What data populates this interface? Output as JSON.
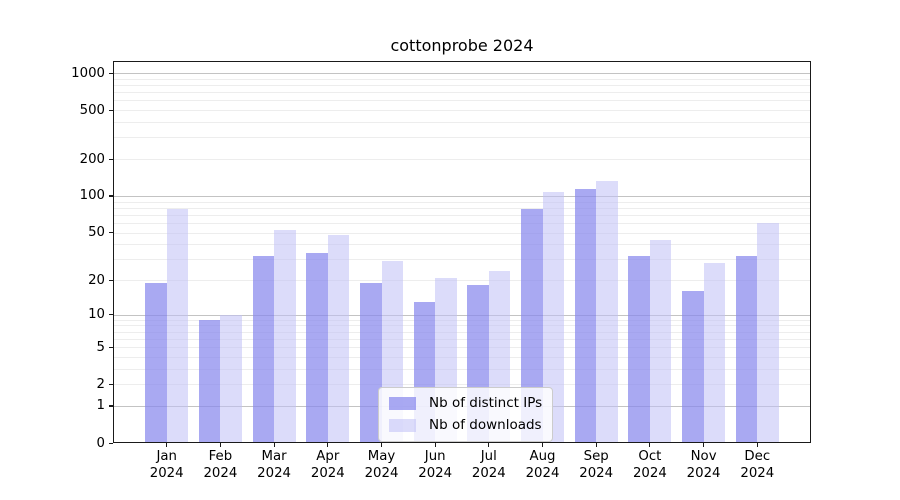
{
  "chart_data": {
    "type": "bar",
    "title": "cottonprobe 2024",
    "year": "2024",
    "categories": [
      "Jan",
      "Feb",
      "Mar",
      "Apr",
      "May",
      "Jun",
      "Jul",
      "Aug",
      "Sep",
      "Oct",
      "Nov",
      "Dec"
    ],
    "series": [
      {
        "name": "Nb of distinct IPs",
        "color": "#8888ed",
        "alpha": 0.72,
        "values": [
          19,
          9,
          32,
          34,
          19,
          13,
          18,
          78,
          114,
          32,
          16,
          32
        ]
      },
      {
        "name": "Nb of downloads",
        "color": "#bfbff6",
        "alpha": 0.55,
        "values": [
          78,
          10,
          52,
          48,
          29,
          21,
          24,
          107,
          133,
          43,
          28,
          60
        ]
      }
    ],
    "y_ticks": [
      0,
      1,
      2,
      5,
      10,
      20,
      50,
      100,
      200,
      500,
      1000
    ],
    "y_major_gridlines": [
      1,
      10,
      100,
      1000
    ],
    "scale": "log1p",
    "y_top": 1253,
    "xlabel": "",
    "ylabel": "",
    "grid": true,
    "legend_position": "lower center",
    "colors": {
      "major_grid": "#c3c3c3",
      "minor_grid": "#ededed",
      "spine": "#1a1a1a",
      "background": "#ffffff"
    }
  }
}
